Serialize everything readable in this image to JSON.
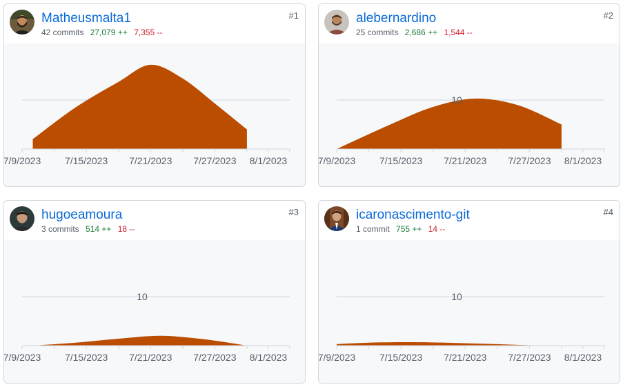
{
  "accent_color": "#bb4d00",
  "x_ticks": [
    "7/9/2023",
    "7/15/2023",
    "7/21/2023",
    "7/27/2023",
    "8/1/2023"
  ],
  "contributors": [
    {
      "rank": "#1",
      "username": "Matheusmalta1",
      "commits": "42 commits",
      "additions": "27,079 ++",
      "deletions": "7,355 --",
      "avatar_icon": "avatar-bearded-man-icon",
      "grid_value": "",
      "chart_data": {
        "type": "area",
        "x": [
          "7/10/2023",
          "7/14/2023",
          "7/18/2023",
          "7/21/2023",
          "7/24/2023",
          "7/27/2023",
          "7/30/2023"
        ],
        "values": [
          2,
          8.5,
          13.7,
          17.2,
          14.4,
          9.3,
          4
        ],
        "ylim": [
          0,
          20
        ]
      }
    },
    {
      "rank": "#2",
      "username": "alebernardino",
      "commits": "25 commits",
      "additions": "2,686 ++",
      "deletions": "1,544 --",
      "avatar_icon": "avatar-man-icon",
      "grid_value": "10",
      "chart_data": {
        "type": "area",
        "x": [
          "7/9/2023",
          "7/14/2023",
          "7/18/2023",
          "7/22/2023",
          "7/26/2023",
          "7/30/2023"
        ],
        "values": [
          0,
          5,
          8.6,
          10.3,
          8.9,
          5
        ],
        "ylim": [
          0,
          10
        ]
      }
    },
    {
      "rank": "#3",
      "username": "hugoeamoura",
      "commits": "3 commits",
      "additions": "514 ++",
      "deletions": "18 --",
      "avatar_icon": "avatar-man-icon",
      "grid_value": "10",
      "chart_data": {
        "type": "area",
        "x": [
          "7/10/2023",
          "7/14/2023",
          "7/18/2023",
          "7/22/2023",
          "7/26/2023",
          "7/30/2023"
        ],
        "values": [
          0,
          0.6,
          1.4,
          2,
          1.3,
          0
        ],
        "ylim": [
          0,
          10
        ]
      }
    },
    {
      "rank": "#4",
      "username": "icaronascimento-git",
      "commits": "1 commit",
      "additions": "755 ++",
      "deletions": "14 --",
      "avatar_icon": "avatar-man-suit-icon",
      "grid_value": "10",
      "chart_data": {
        "type": "area",
        "x": [
          "7/9/2023",
          "7/12/2023",
          "7/16/2023",
          "7/20/2023",
          "7/24/2023",
          "7/28/2023"
        ],
        "values": [
          0.3,
          0.6,
          0.7,
          0.55,
          0.3,
          0
        ],
        "ylim": [
          0,
          10
        ]
      }
    }
  ]
}
